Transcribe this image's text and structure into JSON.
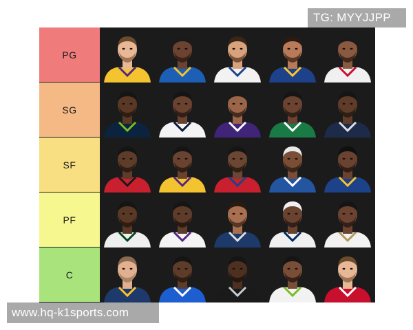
{
  "watermark_top": "TG: MYYJJPP",
  "watermark_bottom": "www.hq-k1sports.com",
  "tiers": [
    {
      "label": "PG",
      "color": "#f07b7b",
      "players": [
        {
          "skin": "#e8b896",
          "hair": "#6b4a2e",
          "jersey": "#f4c430",
          "trim": "#552583",
          "beard": "#8a6040"
        },
        {
          "skin": "#6b4330",
          "hair": "#1a1a1a",
          "jersey": "#1d5fb5",
          "trim": "#f4c430",
          "beard": "#2a1a12"
        },
        {
          "skin": "#d7a27c",
          "hair": "#3a2616",
          "jersey": "#f2f2f2",
          "trim": "#1d428a",
          "beard": "#5a3a22"
        },
        {
          "skin": "#b87a58",
          "hair": "#2a1a12",
          "jersey": "#1d428a",
          "trim": "#ffc72c",
          "beard": "#3a2416"
        },
        {
          "skin": "#8a5a40",
          "hair": "#1a1a1a",
          "jersey": "#f0f0f0",
          "trim": "#c8102e",
          "beard": "#2a1a12"
        }
      ]
    },
    {
      "label": "SG",
      "color": "#f5b985",
      "players": [
        {
          "skin": "#5a3826",
          "hair": "#151515",
          "jersey": "#0c2340",
          "trim": "#78be20",
          "beard": "#1f140c"
        },
        {
          "skin": "#6a4230",
          "hair": "#151515",
          "jersey": "#f4f4f4",
          "trim": "#0a1a3a",
          "beard": "#221410"
        },
        {
          "skin": "#9a6548",
          "hair": "#1a1a1a",
          "jersey": "#3f2478",
          "trim": "#ffffff",
          "beard": "#2a1a12"
        },
        {
          "skin": "#6b4330",
          "hair": "#151515",
          "jersey": "#1a7a45",
          "trim": "#ffffff",
          "beard": "#221410"
        },
        {
          "skin": "#5f3c2a",
          "hair": "#151515",
          "jersey": "#1d2a4a",
          "trim": "#e0e0e0",
          "beard": "#1f140c"
        }
      ]
    },
    {
      "label": "SF",
      "color": "#f8df82",
      "players": [
        {
          "skin": "#5e3c2a",
          "hair": "#151515",
          "jersey": "#c8202e",
          "trim": "#1a1a1a",
          "beard": "#1f140c"
        },
        {
          "skin": "#6a4230",
          "hair": "#151515",
          "jersey": "#f4c430",
          "trim": "#552583",
          "beard": "#1f140c"
        },
        {
          "skin": "#6b4632",
          "hair": "#151515",
          "jersey": "#c8202e",
          "trim": "#1d428a",
          "beard": "#1f140c"
        },
        {
          "skin": "#7a4e36",
          "hair": "#e9e9e9",
          "jersey": "#2455a0",
          "trim": "#ffffff",
          "beard": "#2a1a12"
        },
        {
          "skin": "#6a4230",
          "hair": "#101010",
          "jersey": "#1d428a",
          "trim": "#f4c430",
          "beard": "#1f140c"
        }
      ]
    },
    {
      "label": "PF",
      "color": "#f6f78f",
      "players": [
        {
          "skin": "#5a3826",
          "hair": "#151515",
          "jersey": "#efefef",
          "trim": "#00471b",
          "beard": "#1f140c"
        },
        {
          "skin": "#5e3c2a",
          "hair": "#151515",
          "jersey": "#f4f4f4",
          "trim": "#552583",
          "beard": "#1a1008"
        },
        {
          "skin": "#a87050",
          "hair": "#2a1a12",
          "jersey": "#1d3a6a",
          "trim": "#e0e0e0",
          "beard": "#3a2416"
        },
        {
          "skin": "#6a4230",
          "hair": "#f0f0f0",
          "jersey": "#f0f0f0",
          "trim": "#002b5c",
          "beard": "#221410"
        },
        {
          "skin": "#6b4330",
          "hair": "#151515",
          "jersey": "#f2f2f2",
          "trim": "#b4975a",
          "beard": "#221410"
        }
      ]
    },
    {
      "label": "C",
      "color": "#a8e47b",
      "players": [
        {
          "skin": "#e2b090",
          "hair": "#8a6a50",
          "jersey": "#1d3a6a",
          "trim": "#fec524",
          "beard": "#9a7a5a"
        },
        {
          "skin": "#5e3c2a",
          "hair": "#151515",
          "jersey": "#1d5fd0",
          "trim": "#ffffff",
          "beard": "#1f140c"
        },
        {
          "skin": "#4e3020",
          "hair": "#151515",
          "jersey": "#1a1a1a",
          "trim": "#c4ced4",
          "beard": "#1a1008"
        },
        {
          "skin": "#7a4e36",
          "hair": "#151515",
          "jersey": "#f2f2f2",
          "trim": "#78be20",
          "beard": "#221410"
        },
        {
          "skin": "#e8b896",
          "hair": "#6b4a2e",
          "jersey": "#c8102e",
          "trim": "#ffffff",
          "beard": "#8a6040"
        }
      ]
    }
  ]
}
